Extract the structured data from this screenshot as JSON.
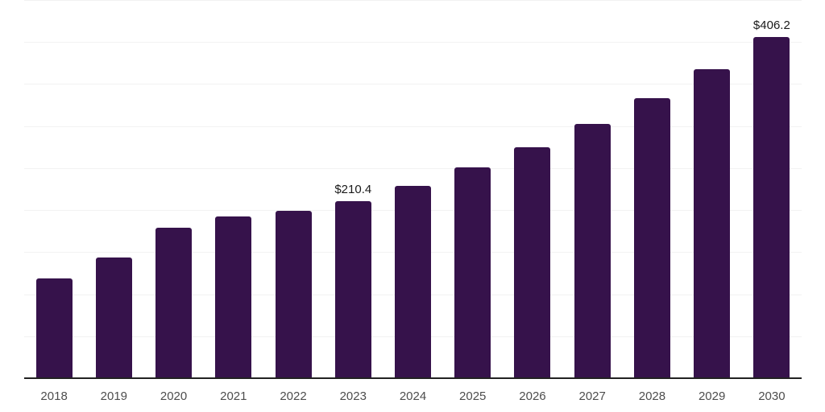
{
  "chart_data": {
    "type": "bar",
    "title": "",
    "xlabel": "",
    "ylabel": "",
    "categories": [
      "2018",
      "2019",
      "2020",
      "2021",
      "2022",
      "2023",
      "2024",
      "2025",
      "2026",
      "2027",
      "2028",
      "2029",
      "2030"
    ],
    "values": [
      118.8,
      143.8,
      178.6,
      192.1,
      199.3,
      210.4,
      228.7,
      250.9,
      275.0,
      303.0,
      332.9,
      367.6,
      406.2
    ],
    "data_labels": {
      "2023": "$210.4",
      "2030": "$406.2"
    },
    "ylim": [
      0,
      450
    ],
    "gridline_step": 50,
    "grid": "horizontal-light",
    "legend": "none",
    "colors": {
      "bar": "#36124b",
      "axis_line": "#222222",
      "gridline": "#f2f2f2",
      "tick_label": "#4d4d4d",
      "data_label": "#1a1a1a",
      "background": "#ffffff"
    }
  }
}
